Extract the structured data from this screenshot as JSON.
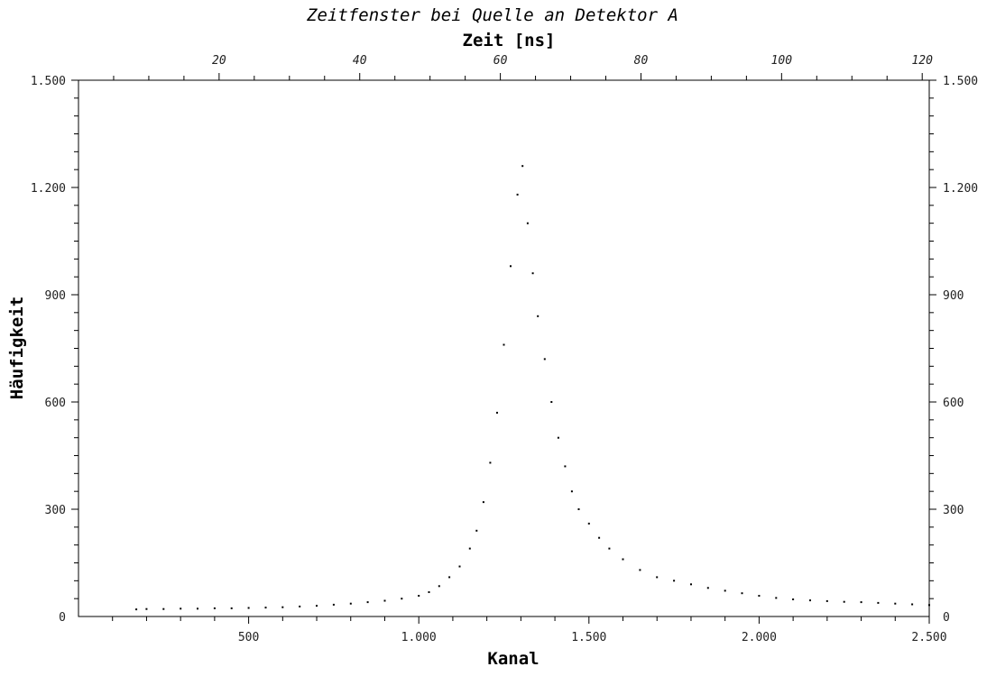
{
  "chart_data": {
    "type": "scatter",
    "title": "Zeitfenster bei Quelle an Detektor A",
    "xlabel": "Kanal",
    "ylabel": "Häufigkeit",
    "x2label": "Zeit [ns]",
    "xlim": [
      0,
      2500
    ],
    "ylim": [
      0,
      1500
    ],
    "x2lim": [
      0,
      121
    ],
    "x_ticks": [
      500,
      1000,
      1500,
      2000,
      2500
    ],
    "x_tick_labels": [
      "500",
      "1.000",
      "1.500",
      "2.000",
      "2.500"
    ],
    "x2_ticks": [
      20,
      40,
      60,
      80,
      100,
      120
    ],
    "x2_tick_labels": [
      "20",
      "40",
      "60",
      "80",
      "100",
      "120"
    ],
    "y_ticks": [
      0,
      300,
      600,
      900,
      1200,
      1500
    ],
    "y_tick_labels": [
      "0",
      "300",
      "600",
      "900",
      "1.200",
      "1.500"
    ],
    "grid": false,
    "marker_color": "#000000",
    "series": [
      {
        "x": [
          170,
          200,
          250,
          300,
          350,
          400,
          450,
          500,
          550,
          600,
          650,
          700,
          750,
          800,
          850,
          900,
          950,
          1000,
          1030,
          1060,
          1090,
          1120,
          1150,
          1170,
          1190,
          1210,
          1230,
          1250,
          1270,
          1290,
          1305,
          1320,
          1335,
          1350,
          1370,
          1390,
          1410,
          1430,
          1450,
          1470,
          1500,
          1530,
          1560,
          1600,
          1650,
          1700,
          1750,
          1800,
          1850,
          1900,
          1950,
          2000,
          2050,
          2100,
          2150,
          2200,
          2250,
          2300,
          2350,
          2400,
          2450,
          2500
        ],
        "y": [
          20,
          21,
          21,
          22,
          22,
          23,
          23,
          24,
          25,
          26,
          28,
          30,
          33,
          36,
          40,
          44,
          50,
          58,
          68,
          85,
          110,
          140,
          190,
          240,
          320,
          430,
          570,
          760,
          980,
          1180,
          1260,
          1100,
          960,
          840,
          720,
          600,
          500,
          420,
          350,
          300,
          260,
          220,
          190,
          160,
          130,
          110,
          100,
          90,
          80,
          72,
          65,
          58,
          52,
          48,
          45,
          43,
          41,
          40,
          38,
          36,
          34,
          32
        ]
      }
    ]
  }
}
